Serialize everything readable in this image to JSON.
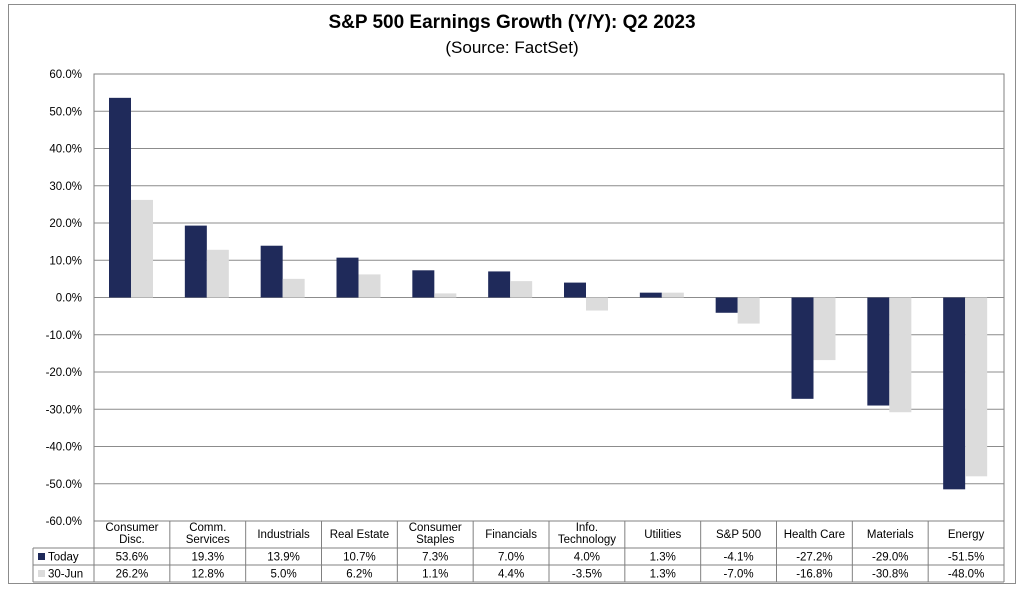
{
  "chart_data": {
    "type": "bar",
    "title": "S&P 500 Earnings Growth (Y/Y): Q2 2023",
    "subtitle": "(Source: FactSet)",
    "categories": [
      "Consumer Disc.",
      "Comm. Services",
      "Industrials",
      "Real Estate",
      "Consumer Staples",
      "Financials",
      "Info. Technology",
      "Utilities",
      "S&P 500",
      "Health Care",
      "Materials",
      "Energy"
    ],
    "category_lines": [
      [
        "Consumer",
        "Disc."
      ],
      [
        "Comm.",
        "Services"
      ],
      [
        "Industrials"
      ],
      [
        "Real Estate"
      ],
      [
        "Consumer",
        "Staples"
      ],
      [
        "Financials"
      ],
      [
        "Info.",
        "Technology"
      ],
      [
        "Utilities"
      ],
      [
        "S&P 500"
      ],
      [
        "Health Care"
      ],
      [
        "Materials"
      ],
      [
        "Energy"
      ]
    ],
    "series": [
      {
        "name": "Today",
        "color": "#1f2a5a",
        "values": [
          53.6,
          19.3,
          13.9,
          10.7,
          7.3,
          7.0,
          4.0,
          1.3,
          -4.1,
          -27.2,
          -29.0,
          -51.5
        ],
        "labels": [
          "53.6%",
          "19.3%",
          "13.9%",
          "10.7%",
          "7.3%",
          "7.0%",
          "4.0%",
          "1.3%",
          "-4.1%",
          "-27.2%",
          "-29.0%",
          "-51.5%"
        ]
      },
      {
        "name": "30-Jun",
        "color": "#dcdcdc",
        "values": [
          26.2,
          12.8,
          5.0,
          6.2,
          1.1,
          4.4,
          -3.5,
          1.3,
          -7.0,
          -16.8,
          -30.8,
          -48.0
        ],
        "labels": [
          "26.2%",
          "12.8%",
          "5.0%",
          "6.2%",
          "1.1%",
          "4.4%",
          "-3.5%",
          "1.3%",
          "-7.0%",
          "-16.8%",
          "-30.8%",
          "-48.0%"
        ]
      }
    ],
    "ylim": [
      -60,
      60
    ],
    "ytick_values": [
      60,
      50,
      40,
      30,
      20,
      10,
      0,
      -10,
      -20,
      -30,
      -40,
      -50,
      -60
    ],
    "ytick_labels": [
      "60.0%",
      "50.0%",
      "40.0%",
      "30.0%",
      "20.0%",
      "10.0%",
      "0.0%",
      "-10.0%",
      "-20.0%",
      "-30.0%",
      "-40.0%",
      "-50.0%",
      "-60.0%"
    ],
    "grid": true,
    "legend": "data-table"
  }
}
